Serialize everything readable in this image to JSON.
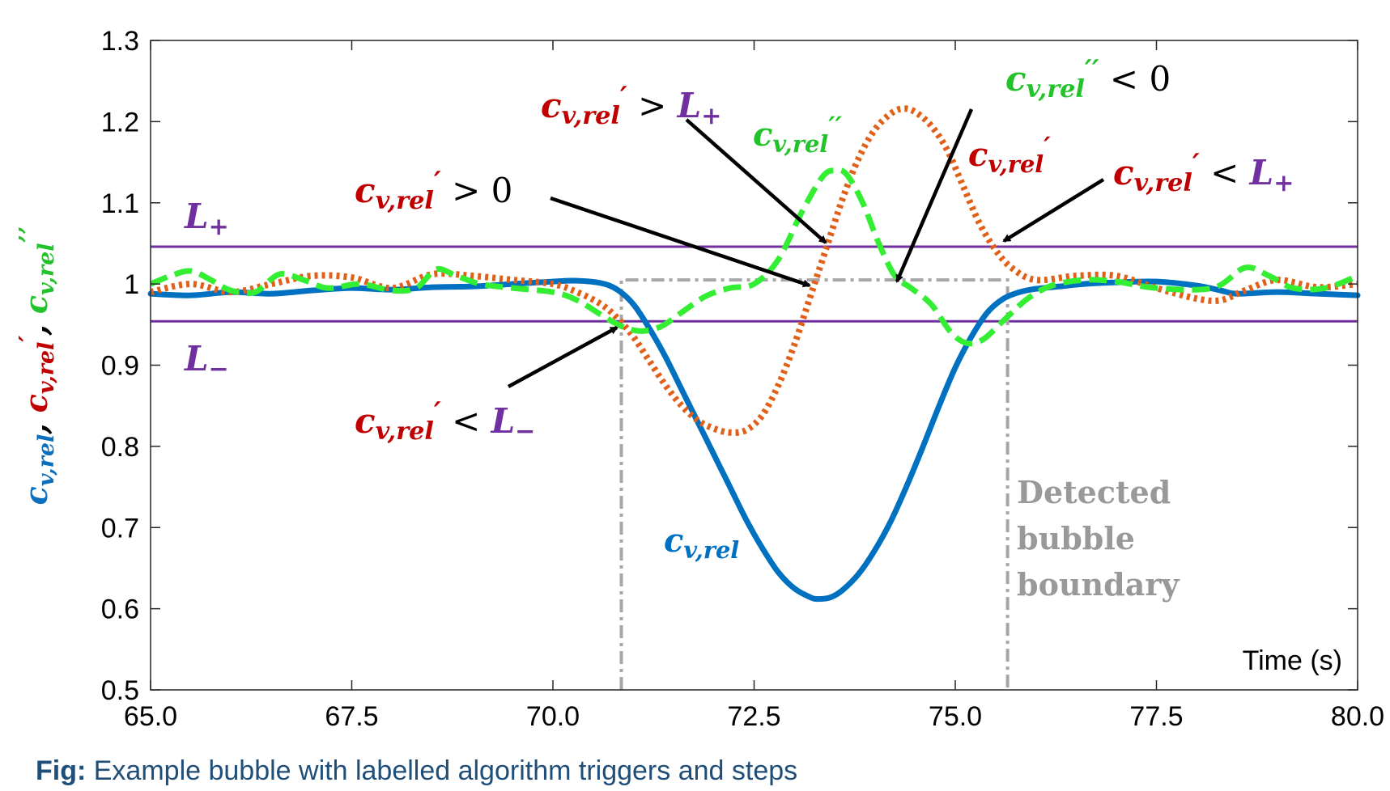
{
  "chart_data": {
    "type": "line",
    "xlabel": "Time (s)",
    "ylabel_parts": [
      {
        "text": "c",
        "sub": "v,rel",
        "sup": "",
        "color": "#0b6fbd"
      },
      {
        "text": ", ",
        "sub": "",
        "sup": "",
        "color": "#000000"
      },
      {
        "text": "c",
        "sub": "v,rel",
        "sup": "′",
        "color": "#c00000"
      },
      {
        "text": ", ",
        "sub": "",
        "sup": "",
        "color": "#000000"
      },
      {
        "text": "c",
        "sub": "v,rel",
        "sup": "’’",
        "color": "#22c22a"
      }
    ],
    "xlim": [
      65,
      80
    ],
    "ylim": [
      0.5,
      1.3
    ],
    "xticks": [
      "65.0",
      "67.5",
      "70.0",
      "72.5",
      "75.0",
      "77.5",
      "80.0"
    ],
    "yticks": [
      "0.5",
      "0.6",
      "0.7",
      "0.8",
      "0.9",
      "1",
      "1.1",
      "1.2",
      "1.3"
    ],
    "grid": false,
    "series": [
      {
        "key": "cv",
        "color": "#0070c0",
        "style": "solid",
        "points": [
          [
            65,
            0.988
          ],
          [
            65.5,
            0.986
          ],
          [
            66,
            0.99
          ],
          [
            66.5,
            0.988
          ],
          [
            67,
            0.992
          ],
          [
            67.5,
            0.995
          ],
          [
            68,
            0.993
          ],
          [
            68.5,
            0.996
          ],
          [
            69,
            0.997
          ],
          [
            69.5,
            1.0
          ],
          [
            70,
            1.003
          ],
          [
            70.3,
            1.004
          ],
          [
            70.6,
            1.001
          ],
          [
            70.8,
            0.993
          ],
          [
            71,
            0.975
          ],
          [
            71.2,
            0.945
          ],
          [
            71.4,
            0.91
          ],
          [
            71.6,
            0.87
          ],
          [
            71.8,
            0.83
          ],
          [
            72,
            0.79
          ],
          [
            72.2,
            0.75
          ],
          [
            72.4,
            0.71
          ],
          [
            72.6,
            0.675
          ],
          [
            72.8,
            0.645
          ],
          [
            73,
            0.625
          ],
          [
            73.2,
            0.614
          ],
          [
            73.3,
            0.612
          ],
          [
            73.45,
            0.614
          ],
          [
            73.6,
            0.623
          ],
          [
            73.8,
            0.643
          ],
          [
            74,
            0.672
          ],
          [
            74.2,
            0.708
          ],
          [
            74.4,
            0.752
          ],
          [
            74.6,
            0.8
          ],
          [
            74.8,
            0.85
          ],
          [
            75,
            0.897
          ],
          [
            75.2,
            0.935
          ],
          [
            75.4,
            0.965
          ],
          [
            75.6,
            0.982
          ],
          [
            75.8,
            0.99
          ],
          [
            76,
            0.994
          ],
          [
            76.3,
            0.997
          ],
          [
            76.6,
            1.0
          ],
          [
            77,
            1.002
          ],
          [
            77.5,
            1.003
          ],
          [
            78,
            0.998
          ],
          [
            78.3,
            0.992
          ],
          [
            78.5,
            0.988
          ],
          [
            79,
            0.99
          ],
          [
            79.5,
            0.988
          ],
          [
            80,
            0.986
          ]
        ]
      },
      {
        "key": "cv1",
        "color": "#e25f17",
        "style": "dotted",
        "points": [
          [
            65,
            0.99
          ],
          [
            65.5,
            1.0
          ],
          [
            66,
            0.99
          ],
          [
            66.5,
            1.0
          ],
          [
            67,
            1.01
          ],
          [
            67.5,
            1.008
          ],
          [
            68,
            0.995
          ],
          [
            68.5,
            1.012
          ],
          [
            69,
            1.01
          ],
          [
            69.5,
            1.005
          ],
          [
            70,
            1.0
          ],
          [
            70.3,
            0.99
          ],
          [
            70.6,
            0.975
          ],
          [
            70.8,
            0.958
          ],
          [
            71,
            0.935
          ],
          [
            71.2,
            0.905
          ],
          [
            71.4,
            0.875
          ],
          [
            71.6,
            0.85
          ],
          [
            71.8,
            0.832
          ],
          [
            72,
            0.822
          ],
          [
            72.2,
            0.817
          ],
          [
            72.4,
            0.82
          ],
          [
            72.6,
            0.838
          ],
          [
            72.8,
            0.875
          ],
          [
            73,
            0.925
          ],
          [
            73.2,
            0.985
          ],
          [
            73.4,
            1.045
          ],
          [
            73.6,
            1.105
          ],
          [
            73.8,
            1.155
          ],
          [
            74,
            1.19
          ],
          [
            74.2,
            1.21
          ],
          [
            74.35,
            1.216
          ],
          [
            74.5,
            1.212
          ],
          [
            74.7,
            1.195
          ],
          [
            74.9,
            1.165
          ],
          [
            75.1,
            1.12
          ],
          [
            75.3,
            1.075
          ],
          [
            75.5,
            1.042
          ],
          [
            75.7,
            1.02
          ],
          [
            76,
            1.005
          ],
          [
            76.5,
            1.01
          ],
          [
            77,
            1.01
          ],
          [
            77.5,
            0.995
          ],
          [
            78,
            0.982
          ],
          [
            78.3,
            0.98
          ],
          [
            78.6,
            0.992
          ],
          [
            79,
            1.005
          ],
          [
            79.5,
            0.996
          ],
          [
            80,
            1.0
          ]
        ]
      },
      {
        "key": "cv2",
        "color": "#33ee33",
        "style": "dashed",
        "points": [
          [
            65,
            1.0
          ],
          [
            65.25,
            1.01
          ],
          [
            65.5,
            1.016
          ],
          [
            65.75,
            1.005
          ],
          [
            66,
            0.992
          ],
          [
            66.3,
            0.99
          ],
          [
            66.6,
            1.012
          ],
          [
            66.9,
            1.005
          ],
          [
            67.2,
            0.995
          ],
          [
            67.6,
            1.0
          ],
          [
            68,
            0.992
          ],
          [
            68.3,
            0.995
          ],
          [
            68.55,
            1.018
          ],
          [
            68.8,
            1.01
          ],
          [
            69.1,
            1.0
          ],
          [
            69.5,
            0.995
          ],
          [
            70,
            0.99
          ],
          [
            70.3,
            0.98
          ],
          [
            70.6,
            0.962
          ],
          [
            70.85,
            0.948
          ],
          [
            71.1,
            0.942
          ],
          [
            71.35,
            0.948
          ],
          [
            71.6,
            0.965
          ],
          [
            71.9,
            0.985
          ],
          [
            72.2,
            0.995
          ],
          [
            72.5,
            1.0
          ],
          [
            72.8,
            1.03
          ],
          [
            73.1,
            1.09
          ],
          [
            73.35,
            1.132
          ],
          [
            73.5,
            1.14
          ],
          [
            73.65,
            1.135
          ],
          [
            73.85,
            1.1
          ],
          [
            74.05,
            1.05
          ],
          [
            74.25,
            1.01
          ],
          [
            74.45,
            0.995
          ],
          [
            74.7,
            0.975
          ],
          [
            74.95,
            0.94
          ],
          [
            75.15,
            0.927
          ],
          [
            75.35,
            0.932
          ],
          [
            75.6,
            0.955
          ],
          [
            75.9,
            0.982
          ],
          [
            76.2,
            0.998
          ],
          [
            76.6,
            1.005
          ],
          [
            77,
            1.003
          ],
          [
            77.5,
            0.995
          ],
          [
            78.2,
            0.995
          ],
          [
            78.6,
            1.02
          ],
          [
            78.9,
            1.01
          ],
          [
            79.2,
            0.995
          ],
          [
            79.6,
            0.995
          ],
          [
            80,
            1.01
          ]
        ]
      }
    ],
    "thresholds": [
      {
        "key": "L+",
        "y": 1.046,
        "color": "#7030a0"
      },
      {
        "key": "L-",
        "y": 0.954,
        "color": "#7030a0"
      }
    ],
    "boundary": {
      "x_start": 70.85,
      "x_end": 75.65,
      "y_top": 1.005,
      "color": "#a6a6a6"
    },
    "annotations": [
      {
        "key": "cv_label",
        "parts": [
          {
            "t": "c",
            "sub": "v,rel",
            "sup": "",
            "color": "#0070c0"
          }
        ]
      },
      {
        "key": "cv1_label",
        "parts": [
          {
            "t": "c",
            "sub": "v,rel",
            "sup": "′",
            "color": "#c00000"
          }
        ]
      },
      {
        "key": "cv2_label",
        "parts": [
          {
            "t": "c",
            "sub": "v,rel",
            "sup": "′′",
            "color": "#22c22a"
          }
        ]
      },
      {
        "key": "Lplus_label",
        "parts": [
          {
            "t": "L",
            "sub": "+",
            "sup": "",
            "color": "#7030a0"
          }
        ]
      },
      {
        "key": "Lminus_label",
        "parts": [
          {
            "t": "L",
            "sub": "−",
            "sup": "",
            "color": "#7030a0"
          }
        ]
      },
      {
        "key": "trig1",
        "parts": [
          {
            "t": "c",
            "sub": "v,rel",
            "sup": "′",
            "color": "#c00000"
          },
          {
            "t": " < ",
            "color": "#000000",
            "plain": true
          },
          {
            "t": "L",
            "sub": "−",
            "color": "#7030a0"
          }
        ]
      },
      {
        "key": "trig2",
        "parts": [
          {
            "t": "c",
            "sub": "v,rel",
            "sup": "′",
            "color": "#c00000"
          },
          {
            "t": " > 0",
            "color": "#000000",
            "plain": true
          }
        ]
      },
      {
        "key": "trig3",
        "parts": [
          {
            "t": "c",
            "sub": "v,rel",
            "sup": "′",
            "color": "#c00000"
          },
          {
            "t": " > ",
            "color": "#000000",
            "plain": true
          },
          {
            "t": "L",
            "sub": "+",
            "color": "#7030a0"
          }
        ]
      },
      {
        "key": "trig4",
        "parts": [
          {
            "t": "c",
            "sub": "v,rel",
            "sup": "′′",
            "color": "#22c22a"
          },
          {
            "t": " < 0",
            "color": "#000000",
            "plain": true
          }
        ]
      },
      {
        "key": "trig5",
        "parts": [
          {
            "t": "c",
            "sub": "v,rel",
            "sup": "′",
            "color": "#c00000"
          },
          {
            "t": " < ",
            "color": "#000000",
            "plain": true
          },
          {
            "t": "L",
            "sub": "+",
            "color": "#7030a0"
          }
        ]
      }
    ],
    "boundary_label": [
      "Detected",
      "bubble",
      "boundary"
    ]
  },
  "caption": {
    "bold": "Fig:",
    "text": " Example bubble with labelled algorithm triggers and steps"
  }
}
